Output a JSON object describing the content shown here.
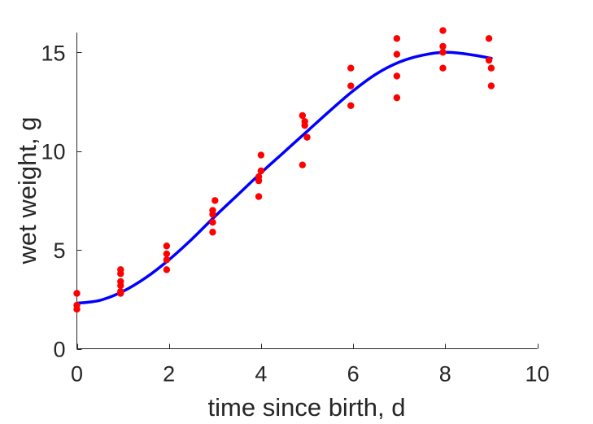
{
  "chart_data": {
    "type": "scatter",
    "title": "",
    "xlabel": "time since birth, d",
    "ylabel": "wet weight, g",
    "xlim": [
      0,
      10
    ],
    "ylim": [
      0,
      16
    ],
    "xticks": [
      0,
      2,
      4,
      6,
      8,
      10
    ],
    "yticks": [
      0,
      5,
      10,
      15
    ],
    "grid": false,
    "series": [
      {
        "kind": "points",
        "color": "#ff0000",
        "x": [
          0,
          0,
          0,
          0.95,
          0.95,
          0.95,
          0.95,
          0.95,
          0.95,
          1.95,
          1.95,
          1.95,
          1.95,
          2.95,
          2.95,
          2.95,
          2.95,
          3.0,
          3.95,
          3.95,
          3.95,
          4.0,
          4.0,
          4.9,
          4.9,
          4.95,
          4.95,
          5.0,
          5.95,
          5.95,
          5.95,
          6.95,
          6.95,
          6.95,
          6.95,
          7.95,
          7.95,
          7.95,
          7.95,
          8.95,
          8.95,
          9.0,
          9.0
        ],
        "y": [
          2.8,
          2.2,
          2.0,
          4.0,
          3.8,
          3.4,
          3.2,
          2.9,
          2.8,
          5.2,
          4.8,
          4.5,
          4.0,
          7.0,
          6.8,
          6.4,
          5.9,
          7.5,
          8.7,
          8.5,
          7.7,
          9.8,
          9.0,
          11.8,
          9.3,
          11.5,
          11.3,
          10.7,
          14.2,
          13.3,
          12.3,
          15.7,
          14.9,
          13.8,
          12.7,
          16.1,
          15.3,
          15.0,
          14.2,
          15.7,
          14.6,
          14.2,
          13.3
        ]
      },
      {
        "kind": "line",
        "color": "#0000ff",
        "x": [
          0,
          0.5,
          1,
          1.5,
          2,
          2.5,
          3,
          3.5,
          4,
          4.5,
          5,
          5.5,
          6,
          6.5,
          7,
          7.5,
          8,
          8.5,
          9
        ],
        "y": [
          2.3,
          2.45,
          2.9,
          3.6,
          4.5,
          5.55,
          6.7,
          7.8,
          8.9,
          9.95,
          11.0,
          12.05,
          13.05,
          13.9,
          14.5,
          14.85,
          15.0,
          14.9,
          14.7
        ]
      }
    ]
  }
}
